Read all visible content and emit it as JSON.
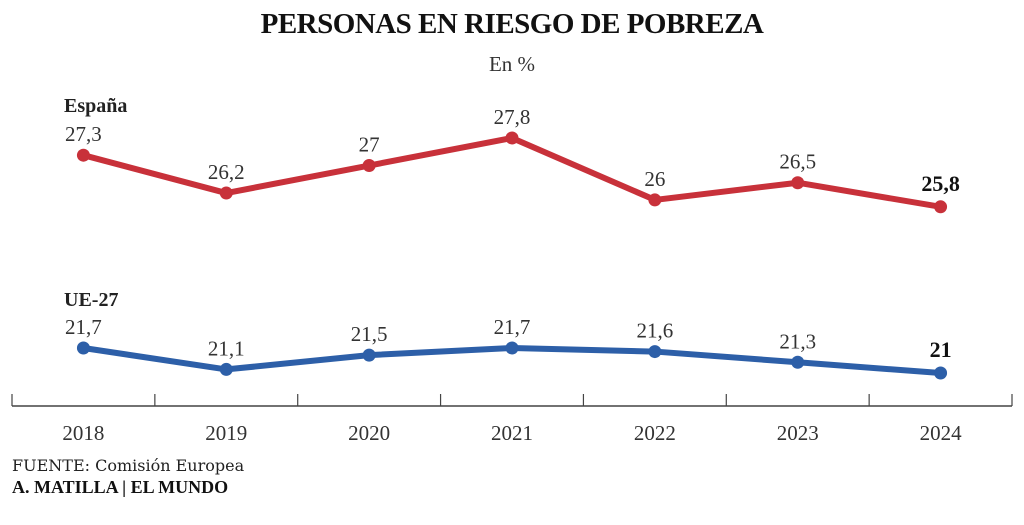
{
  "chart_data": {
    "type": "line",
    "title": "PERSONAS EN RIESGO DE POBREZA",
    "subtitle": "En %",
    "xlabel": "",
    "ylabel": "",
    "x": [
      "2018",
      "2019",
      "2020",
      "2021",
      "2022",
      "2023",
      "2024"
    ],
    "series": [
      {
        "name": "España",
        "color": "#c8313a",
        "values": [
          27.3,
          26.2,
          27,
          27.8,
          26,
          26.5,
          25.8
        ],
        "labels": [
          "27,3",
          "26,2",
          "27",
          "27,8",
          "26",
          "26,5",
          "25,8"
        ]
      },
      {
        "name": "UE-27",
        "color": "#2d5fa8",
        "values": [
          21.7,
          21.1,
          21.5,
          21.7,
          21.6,
          21.3,
          21
        ],
        "labels": [
          "21,7",
          "21,1",
          "21,5",
          "21,7",
          "21,6",
          "21,3",
          "21"
        ]
      }
    ],
    "grid": false,
    "legend": "inline-labels"
  },
  "footer": {
    "source_label": "FUENTE:",
    "source_text": "Comisión Europea",
    "credit": "A. MATILLA | EL MUNDO"
  }
}
